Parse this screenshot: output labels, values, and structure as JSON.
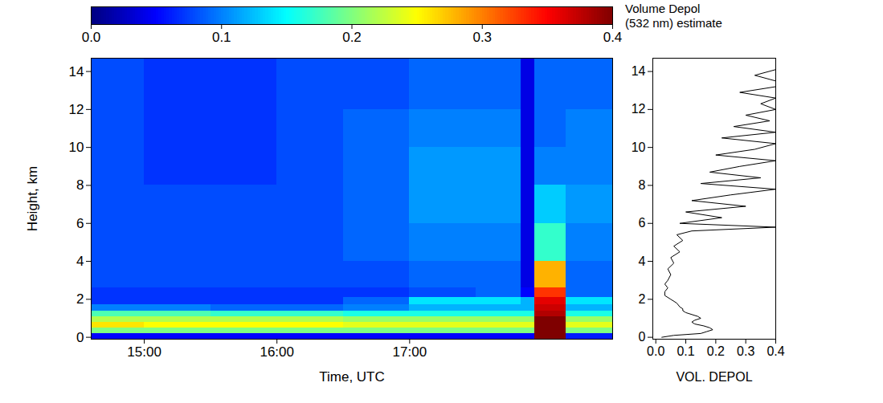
{
  "chart_data": [
    {
      "type": "heatmap",
      "xlabel": "Time, UTC",
      "ylabel": "Height, km",
      "xlim": [
        14.6,
        18.53
      ],
      "xticks": [
        {
          "value": 15,
          "label": "15:00"
        },
        {
          "value": 16,
          "label": "16:00"
        },
        {
          "value": 17,
          "label": "17:00"
        }
      ],
      "ylim": [
        -0.1,
        14.7
      ],
      "yticks": [
        0,
        2,
        4,
        6,
        8,
        10,
        12,
        14
      ],
      "x_edges": [
        14.6,
        15,
        15.5,
        16,
        16.5,
        17,
        17.5,
        17.84,
        17.94,
        18.18,
        18.53
      ],
      "y_edges": [
        -0.1,
        0.2,
        0.5,
        0.8,
        1.1,
        1.4,
        1.7,
        2.1,
        2.6,
        4,
        6,
        8,
        10,
        12,
        14.7
      ],
      "cells": [
        [
          0.05,
          0.05,
          0.05,
          0.05,
          0.05,
          0.05,
          0.05,
          0.05,
          0.4,
          0.06
        ],
        [
          0.2,
          0.2,
          0.2,
          0.2,
          0.2,
          0.2,
          0.2,
          0.2,
          0.4,
          0.2
        ],
        [
          0.26,
          0.25,
          0.25,
          0.25,
          0.24,
          0.24,
          0.24,
          0.24,
          0.4,
          0.24
        ],
        [
          0.22,
          0.22,
          0.22,
          0.22,
          0.21,
          0.21,
          0.21,
          0.21,
          0.4,
          0.21
        ],
        [
          0.18,
          0.18,
          0.17,
          0.17,
          0.16,
          0.16,
          0.16,
          0.16,
          0.38,
          0.16
        ],
        [
          0.1,
          0.1,
          0.09,
          0.09,
          0.1,
          0.12,
          0.12,
          0.12,
          0.37,
          0.12
        ],
        [
          0.07,
          0.07,
          0.07,
          0.07,
          0.09,
          0.14,
          0.14,
          0.12,
          0.36,
          0.14
        ],
        [
          0.07,
          0.07,
          0.07,
          0.07,
          0.07,
          0.08,
          0.09,
          0.05,
          0.33,
          0.09
        ],
        [
          0.08,
          0.08,
          0.08,
          0.08,
          0.08,
          0.09,
          0.09,
          0.04,
          0.28,
          0.09
        ],
        [
          0.08,
          0.08,
          0.08,
          0.08,
          0.09,
          0.1,
          0.1,
          0.04,
          0.17,
          0.1
        ],
        [
          0.08,
          0.08,
          0.08,
          0.08,
          0.09,
          0.11,
          0.11,
          0.04,
          0.13,
          0.11
        ],
        [
          0.08,
          0.07,
          0.07,
          0.08,
          0.09,
          0.11,
          0.11,
          0.04,
          0.1,
          0.1
        ],
        [
          0.08,
          0.07,
          0.07,
          0.08,
          0.09,
          0.1,
          0.1,
          0.04,
          0.09,
          0.1
        ],
        [
          0.08,
          0.07,
          0.07,
          0.08,
          0.08,
          0.09,
          0.09,
          0.04,
          0.09,
          0.09
        ]
      ],
      "colorbar": {
        "label": [
          "Volume Depol",
          "(532 nm) estimate"
        ],
        "range": [
          0,
          0.4
        ],
        "ticks": [
          {
            "value": 0,
            "label": "0.0"
          },
          0.1,
          0.2,
          0.3,
          0.4
        ]
      }
    },
    {
      "type": "line",
      "xlabel": "VOL. DEPOL",
      "xlim": [
        -0.01,
        0.4
      ],
      "xticks": [
        {
          "value": 0,
          "label": "0.0"
        },
        0.1,
        0.2,
        0.3,
        0.4
      ],
      "ylim": [
        -0.1,
        14.7
      ],
      "yticks": [
        0,
        2,
        4,
        6,
        8,
        10,
        12,
        14
      ],
      "color": "#000000",
      "x": [
        0.02,
        0.06,
        0.15,
        0.17,
        0.19,
        0.18,
        0.16,
        0.13,
        0.12,
        0.13,
        0.15,
        0.14,
        0.12,
        0.1,
        0.09,
        0.09,
        0.08,
        0.07,
        0.05,
        0.03,
        0.03,
        0.04,
        0.03,
        0.04,
        0.05,
        0.04,
        0.06,
        0.05,
        0.08,
        0.06,
        0.09,
        0.07,
        0.12,
        0.4,
        0.08,
        0.22,
        0.1,
        0.3,
        0.12,
        0.25,
        0.4,
        0.15,
        0.35,
        0.18,
        0.28,
        0.4,
        0.2,
        0.33,
        0.4,
        0.22,
        0.4,
        0.26,
        0.38,
        0.3,
        0.4,
        0.35,
        0.4,
        0.28,
        0.4,
        0.4,
        0.33,
        0.4,
        0.4
      ],
      "y": [
        0,
        0.1,
        0.2,
        0.3,
        0.4,
        0.5,
        0.6,
        0.7,
        0.8,
        0.9,
        1.0,
        1.1,
        1.2,
        1.3,
        1.4,
        1.5,
        1.6,
        1.8,
        2.0,
        2.2,
        2.4,
        2.6,
        2.8,
        3.0,
        3.3,
        3.6,
        3.9,
        4.2,
        4.5,
        4.8,
        5.1,
        5.4,
        5.6,
        5.8,
        6.0,
        6.3,
        6.6,
        6.9,
        7.2,
        7.5,
        7.8,
        8.1,
        8.4,
        8.7,
        9.0,
        9.3,
        9.6,
        9.9,
        10.2,
        10.5,
        10.8,
        11.1,
        11.4,
        11.7,
        12.0,
        12.3,
        12.6,
        12.9,
        13.2,
        13.5,
        13.8,
        14.1,
        14.4
      ]
    }
  ]
}
